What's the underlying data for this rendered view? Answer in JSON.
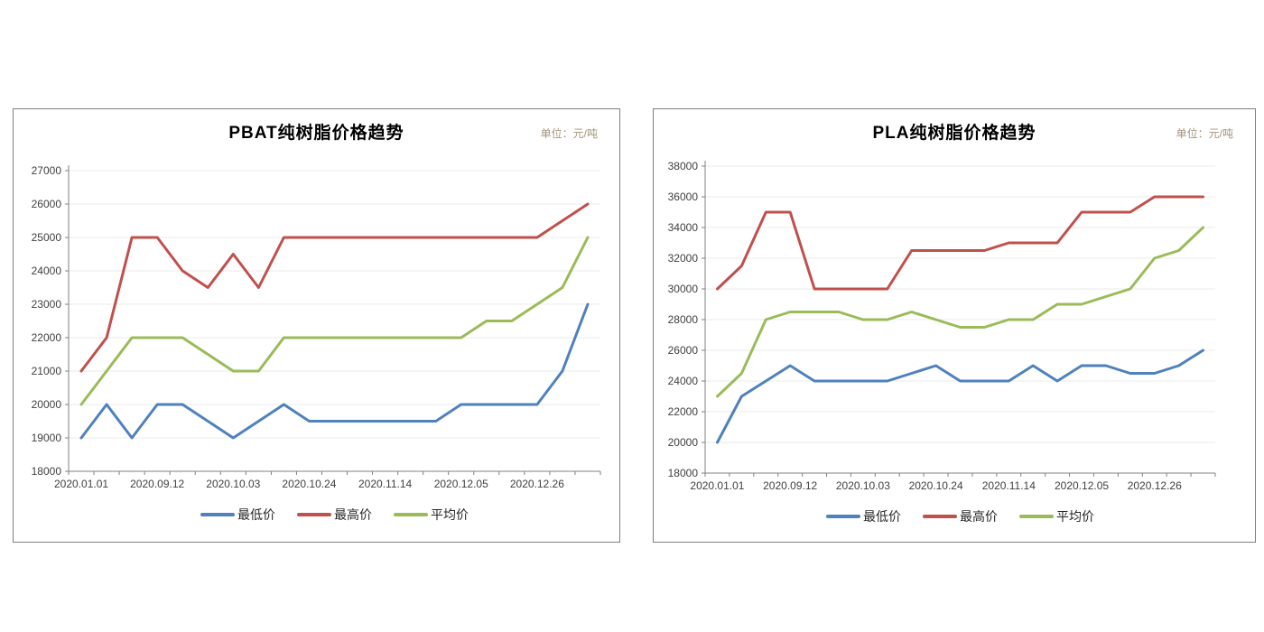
{
  "page": {
    "background": "#ffffff"
  },
  "colors": {
    "series_min": "#4F81BD",
    "series_max": "#C0504D",
    "series_avg": "#9BBB59",
    "axis_line": "#808080",
    "grid_line": "#ebebeb",
    "tick_label": "#404040",
    "panel_border": "#7f7f7f",
    "unit_text": "#a6937c"
  },
  "chart_data": [
    {
      "id": "pbat",
      "type": "line",
      "title": "PBAT纯树脂价格趋势",
      "unit_label": "单位：元/吨",
      "ylabel": "",
      "xlabel": "",
      "ylim": [
        18000,
        27000
      ],
      "y_step": 1000,
      "grid": true,
      "legend_position": "bottom",
      "x_tick_labels": [
        "2020.01.01",
        "2020.09.12",
        "2020.10.03",
        "2020.10.24",
        "2020.11.14",
        "2020.12.05",
        "2020.12.26"
      ],
      "x_label_every": 3,
      "num_points": 21,
      "series": [
        {
          "key": "min",
          "name": "最低价",
          "color": "#4F81BD",
          "values": [
            19000,
            20000,
            19000,
            20000,
            20000,
            19500,
            19000,
            19500,
            20000,
            19500,
            19500,
            19500,
            19500,
            19500,
            19500,
            20000,
            20000,
            20000,
            20000,
            21000,
            23000
          ]
        },
        {
          "key": "max",
          "name": "最高价",
          "color": "#C0504D",
          "values": [
            21000,
            22000,
            25000,
            25000,
            24000,
            23500,
            24500,
            23500,
            25000,
            25000,
            25000,
            25000,
            25000,
            25000,
            25000,
            25000,
            25000,
            25000,
            25000,
            25500,
            26000
          ]
        },
        {
          "key": "avg",
          "name": "平均价",
          "color": "#9BBB59",
          "values": [
            20000,
            21000,
            22000,
            22000,
            22000,
            21500,
            21000,
            21000,
            22000,
            22000,
            22000,
            22000,
            22000,
            22000,
            22000,
            22000,
            22500,
            22500,
            23000,
            23500,
            25000
          ]
        }
      ]
    },
    {
      "id": "pla",
      "type": "line",
      "title": "PLA纯树脂价格趋势",
      "unit_label": "单位：元/吨",
      "ylabel": "",
      "xlabel": "",
      "ylim": [
        18000,
        38000
      ],
      "y_step": 2000,
      "grid": true,
      "legend_position": "bottom",
      "x_tick_labels": [
        "2020.01.01",
        "2020.09.12",
        "2020.10.03",
        "2020.10.24",
        "2020.11.14",
        "2020.12.05",
        "2020.12.26"
      ],
      "x_label_every": 3,
      "num_points": 21,
      "series": [
        {
          "key": "min",
          "name": "最低价",
          "color": "#4F81BD",
          "values": [
            20000,
            23000,
            24000,
            25000,
            24000,
            24000,
            24000,
            24000,
            24500,
            25000,
            24000,
            24000,
            24000,
            25000,
            24000,
            25000,
            25000,
            24500,
            24500,
            25000,
            26000
          ]
        },
        {
          "key": "max",
          "name": "最高价",
          "color": "#C0504D",
          "values": [
            30000,
            31500,
            35000,
            35000,
            30000,
            30000,
            30000,
            30000,
            32500,
            32500,
            32500,
            32500,
            33000,
            33000,
            33000,
            35000,
            35000,
            35000,
            36000,
            36000,
            36000
          ]
        },
        {
          "key": "avg",
          "name": "平均价",
          "color": "#9BBB59",
          "values": [
            23000,
            24500,
            28000,
            28500,
            28500,
            28500,
            28000,
            28000,
            28500,
            28000,
            27500,
            27500,
            28000,
            28000,
            29000,
            29000,
            29500,
            30000,
            32000,
            32500,
            34000
          ]
        }
      ]
    }
  ]
}
